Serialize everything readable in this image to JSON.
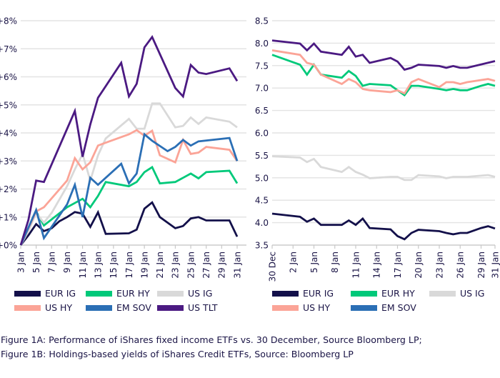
{
  "chart_data": [
    {
      "id": "fig1a",
      "type": "line",
      "title": "",
      "xlabel": "",
      "ylabel": "",
      "x_unit": "day of January",
      "x_ticks": [
        3,
        5,
        7,
        9,
        11,
        13,
        15,
        17,
        19,
        21,
        23,
        25,
        27,
        29,
        31
      ],
      "x_tick_labels": [
        "3 Jan",
        "5 Jan",
        "7 Jan",
        "9 Jan",
        "11 Jan",
        "13 Jan",
        "15 Jan",
        "17 Jan",
        "19 Jan",
        "21 Jan",
        "23 Jan",
        "25 Jan",
        "27 Jan",
        "29 Jan",
        "31 Jan"
      ],
      "xlim": [
        3,
        32.2
      ],
      "ylim": [
        0,
        8
      ],
      "y_ticks": [
        0,
        1,
        2,
        3,
        4,
        5,
        6,
        7,
        8
      ],
      "y_tick_labels": [
        "+0%",
        "+1%",
        "+2%",
        "+3%",
        "+4%",
        "+5%",
        "+6%",
        "+7%",
        "+8%"
      ],
      "grid": "horizontal",
      "legend_position": "bottom",
      "series": [
        {
          "name": "EUR IG",
          "color": "#13104a",
          "points": [
            [
              3,
              0
            ],
            [
              4,
              0.35
            ],
            [
              5,
              0.75
            ],
            [
              6,
              0.5
            ],
            [
              7,
              0.6
            ],
            [
              8,
              0.85
            ],
            [
              9,
              1.0
            ],
            [
              10,
              1.18
            ],
            [
              11,
              1.12
            ],
            [
              12,
              0.65
            ],
            [
              13,
              1.17
            ],
            [
              14,
              0.4
            ],
            [
              17,
              0.42
            ],
            [
              18,
              0.55
            ],
            [
              19,
              1.3
            ],
            [
              20,
              1.52
            ],
            [
              21,
              1.0
            ],
            [
              23,
              0.6
            ],
            [
              24,
              0.68
            ],
            [
              25,
              0.95
            ],
            [
              26,
              1.0
            ],
            [
              27,
              0.88
            ],
            [
              30,
              0.88
            ],
            [
              31,
              0.3
            ]
          ]
        },
        {
          "name": "EUR HY",
          "color": "#00c97a",
          "points": [
            [
              3,
              0
            ],
            [
              5,
              1.2
            ],
            [
              6,
              0.7
            ],
            [
              9,
              1.35
            ],
            [
              11,
              1.65
            ],
            [
              12,
              1.35
            ],
            [
              13,
              1.75
            ],
            [
              14,
              2.25
            ],
            [
              17,
              2.1
            ],
            [
              18,
              2.25
            ],
            [
              19,
              2.6
            ],
            [
              20,
              2.78
            ],
            [
              21,
              2.2
            ],
            [
              23,
              2.25
            ],
            [
              24,
              2.4
            ],
            [
              25,
              2.55
            ],
            [
              26,
              2.38
            ],
            [
              27,
              2.6
            ],
            [
              30,
              2.65
            ],
            [
              31,
              2.2
            ]
          ]
        },
        {
          "name": "US IG",
          "color": "#d9d9d9",
          "points": [
            [
              3,
              0
            ],
            [
              4,
              0.5
            ],
            [
              5,
              1.15
            ],
            [
              6,
              0.8
            ],
            [
              7,
              1.15
            ],
            [
              9,
              2.1
            ],
            [
              10,
              2.7
            ],
            [
              11,
              3.25
            ],
            [
              12,
              2.3
            ],
            [
              13,
              3.2
            ],
            [
              14,
              3.8
            ],
            [
              17,
              4.5
            ],
            [
              18,
              4.15
            ],
            [
              19,
              4.15
            ],
            [
              20,
              5.05
            ],
            [
              21,
              5.05
            ],
            [
              23,
              4.2
            ],
            [
              24,
              4.25
            ],
            [
              25,
              4.55
            ],
            [
              26,
              4.32
            ],
            [
              27,
              4.55
            ],
            [
              30,
              4.4
            ],
            [
              31,
              4.2
            ]
          ]
        },
        {
          "name": "US HY",
          "color": "#fba497",
          "points": [
            [
              3,
              0
            ],
            [
              5,
              1.2
            ],
            [
              6,
              1.35
            ],
            [
              9,
              2.3
            ],
            [
              10,
              3.1
            ],
            [
              11,
              2.7
            ],
            [
              12,
              2.95
            ],
            [
              13,
              3.55
            ],
            [
              14,
              3.65
            ],
            [
              17,
              3.95
            ],
            [
              18,
              4.1
            ],
            [
              19,
              3.9
            ],
            [
              20,
              4.08
            ],
            [
              21,
              3.2
            ],
            [
              23,
              2.95
            ],
            [
              24,
              3.75
            ],
            [
              25,
              3.25
            ],
            [
              26,
              3.3
            ],
            [
              27,
              3.5
            ],
            [
              30,
              3.4
            ],
            [
              31,
              3.0
            ]
          ]
        },
        {
          "name": "EM SOV",
          "color": "#2b6fb5",
          "points": [
            [
              3,
              0
            ],
            [
              5,
              1.25
            ],
            [
              6,
              0.25
            ],
            [
              9,
              1.45
            ],
            [
              10,
              2.15
            ],
            [
              11,
              1.0
            ],
            [
              12,
              2.4
            ],
            [
              13,
              2.15
            ],
            [
              16,
              2.9
            ],
            [
              17,
              2.2
            ],
            [
              18,
              2.55
            ],
            [
              19,
              3.95
            ],
            [
              20,
              3.72
            ],
            [
              22,
              3.35
            ],
            [
              23,
              3.5
            ],
            [
              24,
              3.75
            ],
            [
              25,
              3.55
            ],
            [
              26,
              3.7
            ],
            [
              30,
              3.82
            ],
            [
              31,
              3.0
            ]
          ]
        },
        {
          "name": "US TLT",
          "color": "#4b1a82",
          "points": [
            [
              3,
              0
            ],
            [
              4,
              0.9
            ],
            [
              5,
              2.3
            ],
            [
              6,
              2.25
            ],
            [
              10,
              4.78
            ],
            [
              11,
              3.15
            ],
            [
              12,
              4.3
            ],
            [
              13,
              5.25
            ],
            [
              16,
              6.5
            ],
            [
              17,
              5.3
            ],
            [
              18,
              5.75
            ],
            [
              19,
              7.05
            ],
            [
              20,
              7.42
            ],
            [
              23,
              5.6
            ],
            [
              24,
              5.3
            ],
            [
              25,
              6.42
            ],
            [
              26,
              6.15
            ],
            [
              27,
              6.1
            ],
            [
              30,
              6.3
            ],
            [
              31,
              5.85
            ]
          ]
        }
      ]
    },
    {
      "id": "fig1b",
      "type": "line",
      "title": "",
      "xlabel": "",
      "ylabel": "",
      "x_unit": "days since 30 Dec",
      "x_ticks": [
        0,
        3,
        6,
        9,
        12,
        15,
        18,
        21,
        24,
        27,
        30,
        32
      ],
      "x_tick_labels": [
        "30 Dec",
        "2 Jan",
        "5 Jan",
        "8 Jan",
        "11 Jan",
        "14 Jan",
        "17 Jan",
        "20 Jan",
        "23 Jan",
        "26 Jan",
        "29 Jan",
        "31 Jan"
      ],
      "xlim": [
        0,
        32
      ],
      "ylim": [
        3.5,
        8.5
      ],
      "y_ticks": [
        3.5,
        4.0,
        4.5,
        5.0,
        5.5,
        6.0,
        6.5,
        7.0,
        7.5,
        8.0,
        8.5
      ],
      "y_tick_labels": [
        "3.5",
        "4.0",
        "4.5",
        "5.0",
        "5.5",
        "6.0",
        "6.5",
        "7.0",
        "7.5",
        "8.0",
        "8.5"
      ],
      "grid": "horizontal",
      "legend_position": "bottom",
      "series": [
        {
          "name": "EUR IG",
          "color": "#13104a",
          "points": [
            [
              0,
              4.2
            ],
            [
              4,
              4.13
            ],
            [
              5,
              4.02
            ],
            [
              6,
              4.09
            ],
            [
              7,
              3.95
            ],
            [
              10,
              3.95
            ],
            [
              11,
              4.05
            ],
            [
              12,
              3.95
            ],
            [
              13,
              4.09
            ],
            [
              14,
              3.88
            ],
            [
              17,
              3.85
            ],
            [
              18,
              3.7
            ],
            [
              19,
              3.63
            ],
            [
              20,
              3.77
            ],
            [
              21,
              3.84
            ],
            [
              24,
              3.81
            ],
            [
              25,
              3.77
            ],
            [
              26,
              3.74
            ],
            [
              27,
              3.77
            ],
            [
              28,
              3.77
            ],
            [
              30,
              3.88
            ],
            [
              31,
              3.92
            ],
            [
              32,
              3.87
            ]
          ]
        },
        {
          "name": "EUR HY",
          "color": "#00c97a",
          "points": [
            [
              0,
              7.74
            ],
            [
              4,
              7.52
            ],
            [
              5,
              7.3
            ],
            [
              6,
              7.52
            ],
            [
              7,
              7.3
            ],
            [
              10,
              7.23
            ],
            [
              11,
              7.38
            ],
            [
              12,
              7.27
            ],
            [
              13,
              7.05
            ],
            [
              14,
              7.09
            ],
            [
              17,
              7.06
            ],
            [
              18,
              6.95
            ],
            [
              19,
              6.84
            ],
            [
              20,
              7.05
            ],
            [
              21,
              7.05
            ],
            [
              24,
              6.98
            ],
            [
              25,
              6.95
            ],
            [
              26,
              6.98
            ],
            [
              27,
              6.95
            ],
            [
              28,
              6.95
            ],
            [
              30,
              7.05
            ],
            [
              31,
              7.09
            ],
            [
              32,
              7.05
            ]
          ]
        },
        {
          "name": "US IG",
          "color": "#d9d9d9",
          "points": [
            [
              0,
              5.48
            ],
            [
              4,
              5.45
            ],
            [
              5,
              5.35
            ],
            [
              6,
              5.42
            ],
            [
              7,
              5.24
            ],
            [
              10,
              5.13
            ],
            [
              11,
              5.24
            ],
            [
              12,
              5.13
            ],
            [
              13,
              5.07
            ],
            [
              14,
              4.99
            ],
            [
              17,
              5.02
            ],
            [
              18,
              5.02
            ],
            [
              19,
              4.95
            ],
            [
              20,
              4.95
            ],
            [
              21,
              5.06
            ],
            [
              24,
              5.03
            ],
            [
              25,
              4.99
            ],
            [
              26,
              5.02
            ],
            [
              28,
              5.02
            ],
            [
              31,
              5.06
            ],
            [
              32,
              5.02
            ]
          ]
        },
        {
          "name": "US HY",
          "color": "#fba497",
          "points": [
            [
              0,
              7.84
            ],
            [
              4,
              7.74
            ],
            [
              5,
              7.56
            ],
            [
              6,
              7.52
            ],
            [
              7,
              7.3
            ],
            [
              10,
              7.09
            ],
            [
              11,
              7.2
            ],
            [
              12,
              7.13
            ],
            [
              13,
              6.98
            ],
            [
              14,
              6.95
            ],
            [
              17,
              6.91
            ],
            [
              18,
              6.95
            ],
            [
              19,
              6.88
            ],
            [
              20,
              7.13
            ],
            [
              21,
              7.2
            ],
            [
              24,
              7.02
            ],
            [
              25,
              7.13
            ],
            [
              26,
              7.13
            ],
            [
              27,
              7.09
            ],
            [
              28,
              7.13
            ],
            [
              31,
              7.2
            ],
            [
              32,
              7.16
            ]
          ]
        },
        {
          "name": "EM SOV",
          "color": "#2b6fb5",
          "points": []
        },
        {
          "name": "US TLT",
          "color": "#4b1a82",
          "points": [
            [
              0,
              8.06
            ],
            [
              4,
              7.99
            ],
            [
              5,
              7.84
            ],
            [
              6,
              7.99
            ],
            [
              7,
              7.81
            ],
            [
              10,
              7.74
            ],
            [
              11,
              7.92
            ],
            [
              12,
              7.7
            ],
            [
              13,
              7.74
            ],
            [
              14,
              7.56
            ],
            [
              17,
              7.67
            ],
            [
              18,
              7.59
            ],
            [
              19,
              7.41
            ],
            [
              20,
              7.45
            ],
            [
              21,
              7.52
            ],
            [
              24,
              7.49
            ],
            [
              25,
              7.45
            ],
            [
              26,
              7.49
            ],
            [
              27,
              7.45
            ],
            [
              28,
              7.45
            ],
            [
              32,
              7.6
            ]
          ]
        }
      ]
    }
  ],
  "legends": [
    {
      "chart": "fig1a",
      "items": [
        "EUR IG",
        "EUR HY",
        "US IG",
        "US HY",
        "EM SOV",
        "US TLT"
      ]
    },
    {
      "chart": "fig1b",
      "items": [
        "EUR IG",
        "EUR HY",
        "US IG",
        "US HY",
        "EM SOV"
      ]
    }
  ],
  "colors": {
    "EUR IG": "#13104a",
    "EUR HY": "#00c97a",
    "US IG": "#d9d9d9",
    "US HY": "#fba497",
    "EM SOV": "#2b6fb5",
    "US TLT": "#4b1a82",
    "grid": "#e3e3e3",
    "text": "#1a1446"
  },
  "captions": [
    "Figure 1A: Performance of iShares fixed income ETFs vs. 30 December, Source Bloomberg LP;",
    "Figure 1B: Holdings-based yields of iShares Credit ETFs, Source: Bloomberg LP"
  ]
}
